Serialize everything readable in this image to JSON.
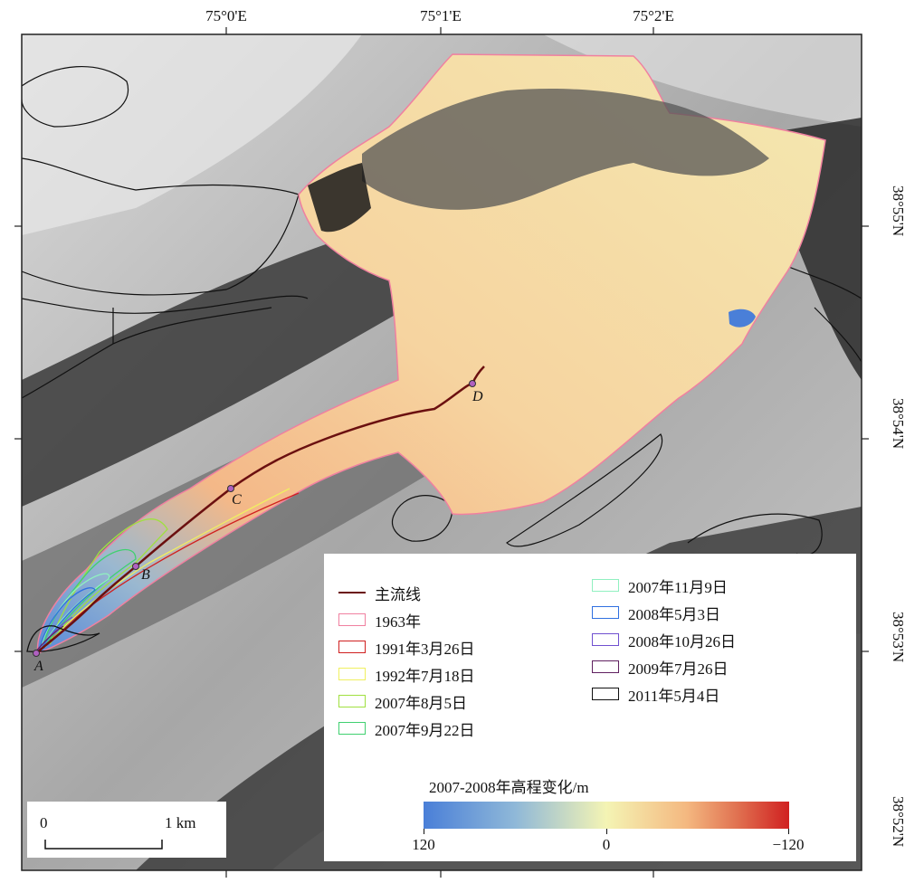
{
  "map": {
    "graticule": {
      "top_labels": [
        "75°0'E",
        "75°1'E",
        "75°2'E"
      ],
      "right_labels": [
        "38°55'N",
        "38°54'N",
        "38°53'N",
        "38°52'N"
      ]
    },
    "points": [
      "A",
      "B",
      "C",
      "D"
    ],
    "legend": {
      "items": [
        {
          "label": "主流线",
          "color": "#6b1010",
          "kind": "line"
        },
        {
          "label": "1963年",
          "color": "#f080a0",
          "kind": "box"
        },
        {
          "label": "1991年3月26日",
          "color": "#d02020",
          "kind": "box"
        },
        {
          "label": "1992年7月18日",
          "color": "#f0f060",
          "kind": "box"
        },
        {
          "label": "2007年8月5日",
          "color": "#a0e040",
          "kind": "box"
        },
        {
          "label": "2007年9月22日",
          "color": "#40d070",
          "kind": "box"
        },
        {
          "label": "2007年11月9日",
          "color": "#90f0c0",
          "kind": "box"
        },
        {
          "label": "2008年5月3日",
          "color": "#3070e0",
          "kind": "box"
        },
        {
          "label": "2008年10月26日",
          "color": "#7050d0",
          "kind": "box"
        },
        {
          "label": "2009年7月26日",
          "color": "#602060",
          "kind": "box"
        },
        {
          "label": "2011年5月4日",
          "color": "#111111",
          "kind": "box"
        }
      ],
      "colorbar": {
        "title": "2007-2008年高程变化/m",
        "min_label": "120",
        "mid_label": "0",
        "max_label": "−120",
        "low_color": "#4a7fd8",
        "mid_color": "#f4f4b4",
        "high_color": "#d02020"
      }
    },
    "scalebar": {
      "left_label": "0",
      "right_label": "1 km"
    }
  }
}
